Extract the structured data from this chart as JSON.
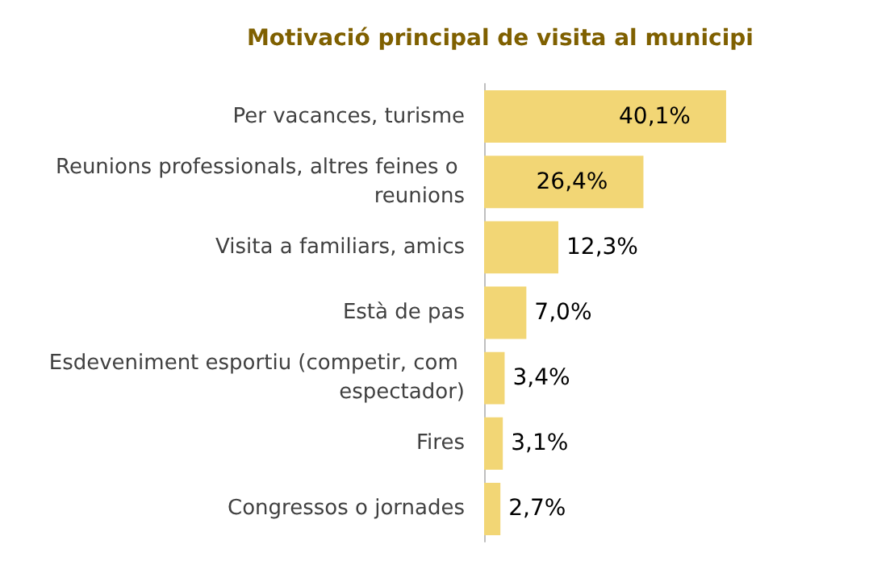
{
  "chart_data": {
    "type": "bar",
    "orientation": "horizontal",
    "title": "Motivació principal de visita al municipi",
    "categories": [
      "Per vacances, turisme",
      "Reunions professionals, altres feines o reunions",
      "Visita a familiars, amics",
      "Està de pas",
      "Esdeveniment esportiu (competir, com espectador)",
      "Fires",
      "Congressos o jornades"
    ],
    "values": [
      40.1,
      26.4,
      12.3,
      7.0,
      3.4,
      3.1,
      2.7
    ],
    "value_labels": [
      "40,1%",
      "26,4%",
      "12,3%",
      "7,0%",
      "3,4%",
      "3,1%",
      "2,7%"
    ],
    "color": "#f2d675"
  }
}
